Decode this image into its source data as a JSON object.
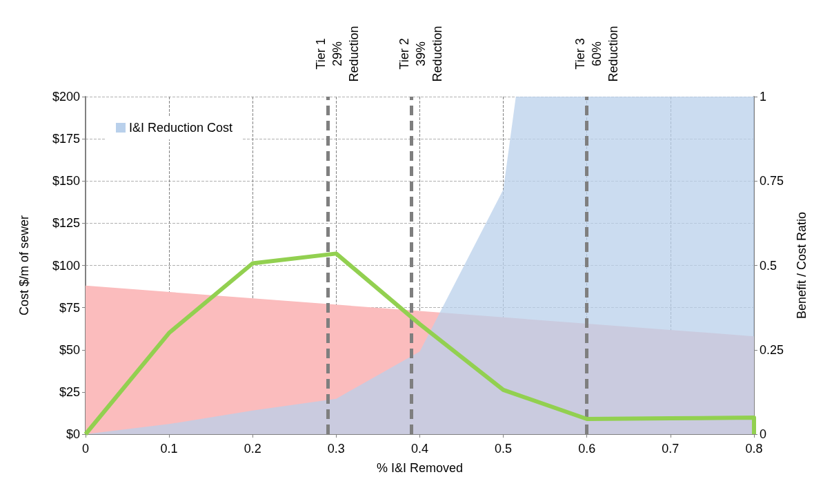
{
  "chart_data": {
    "type": "area",
    "xlabel": "% I&I Removed",
    "ylabel": "Cost $/m of sewer",
    "y2label": "Benefit / Cost Ratio",
    "xlim": [
      0,
      0.8
    ],
    "xticks": [
      0,
      0.1,
      0.2,
      0.3,
      0.4,
      0.5,
      0.6,
      0.7,
      0.8
    ],
    "ylim": [
      0,
      200
    ],
    "yticks": [
      {
        "value": 0,
        "label": "$0"
      },
      {
        "value": 25,
        "label": "$25"
      },
      {
        "value": 50,
        "label": "$50"
      },
      {
        "value": 75,
        "label": "$75"
      },
      {
        "value": 100,
        "label": "$100"
      },
      {
        "value": 125,
        "label": "$125"
      },
      {
        "value": 150,
        "label": "$150"
      },
      {
        "value": 175,
        "label": "$175"
      },
      {
        "value": 200,
        "label": "$200"
      }
    ],
    "y2lim": [
      0,
      1
    ],
    "y2ticks": [
      0,
      0.25,
      0.5,
      0.75,
      1
    ],
    "grid": true,
    "legend": "top left",
    "series": [
      {
        "color": "#fbbcbd",
        "x": [
          0,
          0.8
        ],
        "values": [
          88,
          58
        ]
      },
      {
        "name": "I&I Reduction Cost",
        "color": "#b9d0eb",
        "x": [
          0,
          0.1,
          0.2,
          0.3,
          0.4,
          0.5,
          0.515,
          0.8
        ],
        "values": [
          0,
          6,
          14,
          21,
          49,
          145,
          200,
          200
        ]
      },
      {
        "type": "line",
        "axis": "y2",
        "color": "#92d050",
        "x": [
          0,
          0.1,
          0.2,
          0.3,
          0.4,
          0.5,
          0.6,
          0.7,
          0.8,
          0.8
        ],
        "values": [
          0,
          0.3,
          0.506,
          0.535,
          0.326,
          0.131,
          0.045,
          0.047,
          0.049,
          0
        ]
      }
    ],
    "ref_lines": [
      {
        "axis": "x",
        "value": 0.29,
        "label": "Tier 1\n29%\nReduction",
        "color": "#7f7f7f",
        "line_style": "dashed"
      },
      {
        "axis": "x",
        "value": 0.39,
        "label": "Tier 2\n39%\nReduction",
        "color": "#7f7f7f",
        "line_style": "dashed"
      },
      {
        "axis": "x",
        "value": 0.6,
        "label": "Tier 3\n60%\nReduction",
        "color": "#7f7f7f",
        "line_style": "dashed"
      }
    ]
  }
}
